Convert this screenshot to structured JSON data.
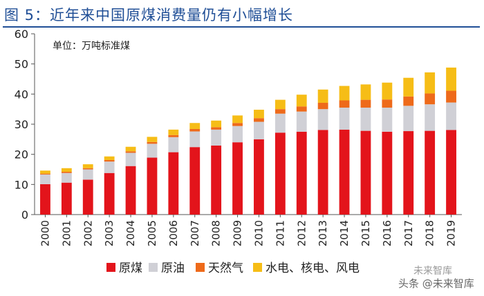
{
  "page": {
    "title": "图 5：近年来中国原煤消费量仍有小幅增长",
    "watermark_top": "未来智库",
    "watermark_bottom": "头条 @未来智库"
  },
  "chart_data": {
    "type": "bar",
    "stacked": true,
    "title": "图 5：近年来中国原煤消费量仍有小幅增长",
    "unit_label": "单位：万吨标准煤",
    "xlabel": "",
    "ylabel": "",
    "ylim": [
      0,
      60
    ],
    "yticks": [
      "0",
      "10",
      "20",
      "30",
      "40",
      "50",
      "60"
    ],
    "grid": false,
    "legend_position": "bottom",
    "categories": [
      "2000",
      "2001",
      "2002",
      "2003",
      "2004",
      "2005",
      "2006",
      "2007",
      "2008",
      "2009",
      "2010",
      "2011",
      "2012",
      "2013",
      "2014",
      "2015",
      "2016",
      "2017",
      "2018",
      "2019"
    ],
    "series": [
      {
        "name": "原煤",
        "color": "#e3141b",
        "values": [
          10.1,
          10.6,
          11.6,
          13.8,
          16.1,
          18.9,
          20.7,
          22.4,
          22.9,
          24.0,
          25.0,
          27.2,
          27.5,
          28.1,
          28.2,
          27.8,
          27.5,
          27.7,
          27.8,
          28.1
        ]
      },
      {
        "name": "原油",
        "color": "#d0d0d6",
        "values": [
          3.2,
          3.2,
          3.4,
          3.8,
          4.4,
          4.6,
          5.0,
          5.2,
          5.3,
          5.4,
          5.8,
          6.3,
          6.7,
          6.9,
          7.3,
          7.7,
          8.0,
          8.4,
          8.8,
          9.1
        ]
      },
      {
        "name": "天然气",
        "color": "#ee6a1a",
        "values": [
          0.3,
          0.4,
          0.4,
          0.5,
          0.5,
          0.6,
          0.7,
          0.8,
          0.8,
          1.0,
          1.2,
          1.5,
          1.7,
          2.1,
          2.4,
          2.6,
          2.7,
          3.1,
          3.6,
          3.9
        ]
      },
      {
        "name": "水电、核电、风电",
        "color": "#f6bd16",
        "values": [
          1.0,
          1.2,
          1.3,
          1.2,
          1.5,
          1.7,
          1.8,
          2.0,
          2.2,
          2.5,
          2.8,
          3.1,
          3.9,
          4.4,
          4.8,
          5.1,
          5.6,
          6.2,
          7.0,
          7.7
        ]
      }
    ]
  }
}
